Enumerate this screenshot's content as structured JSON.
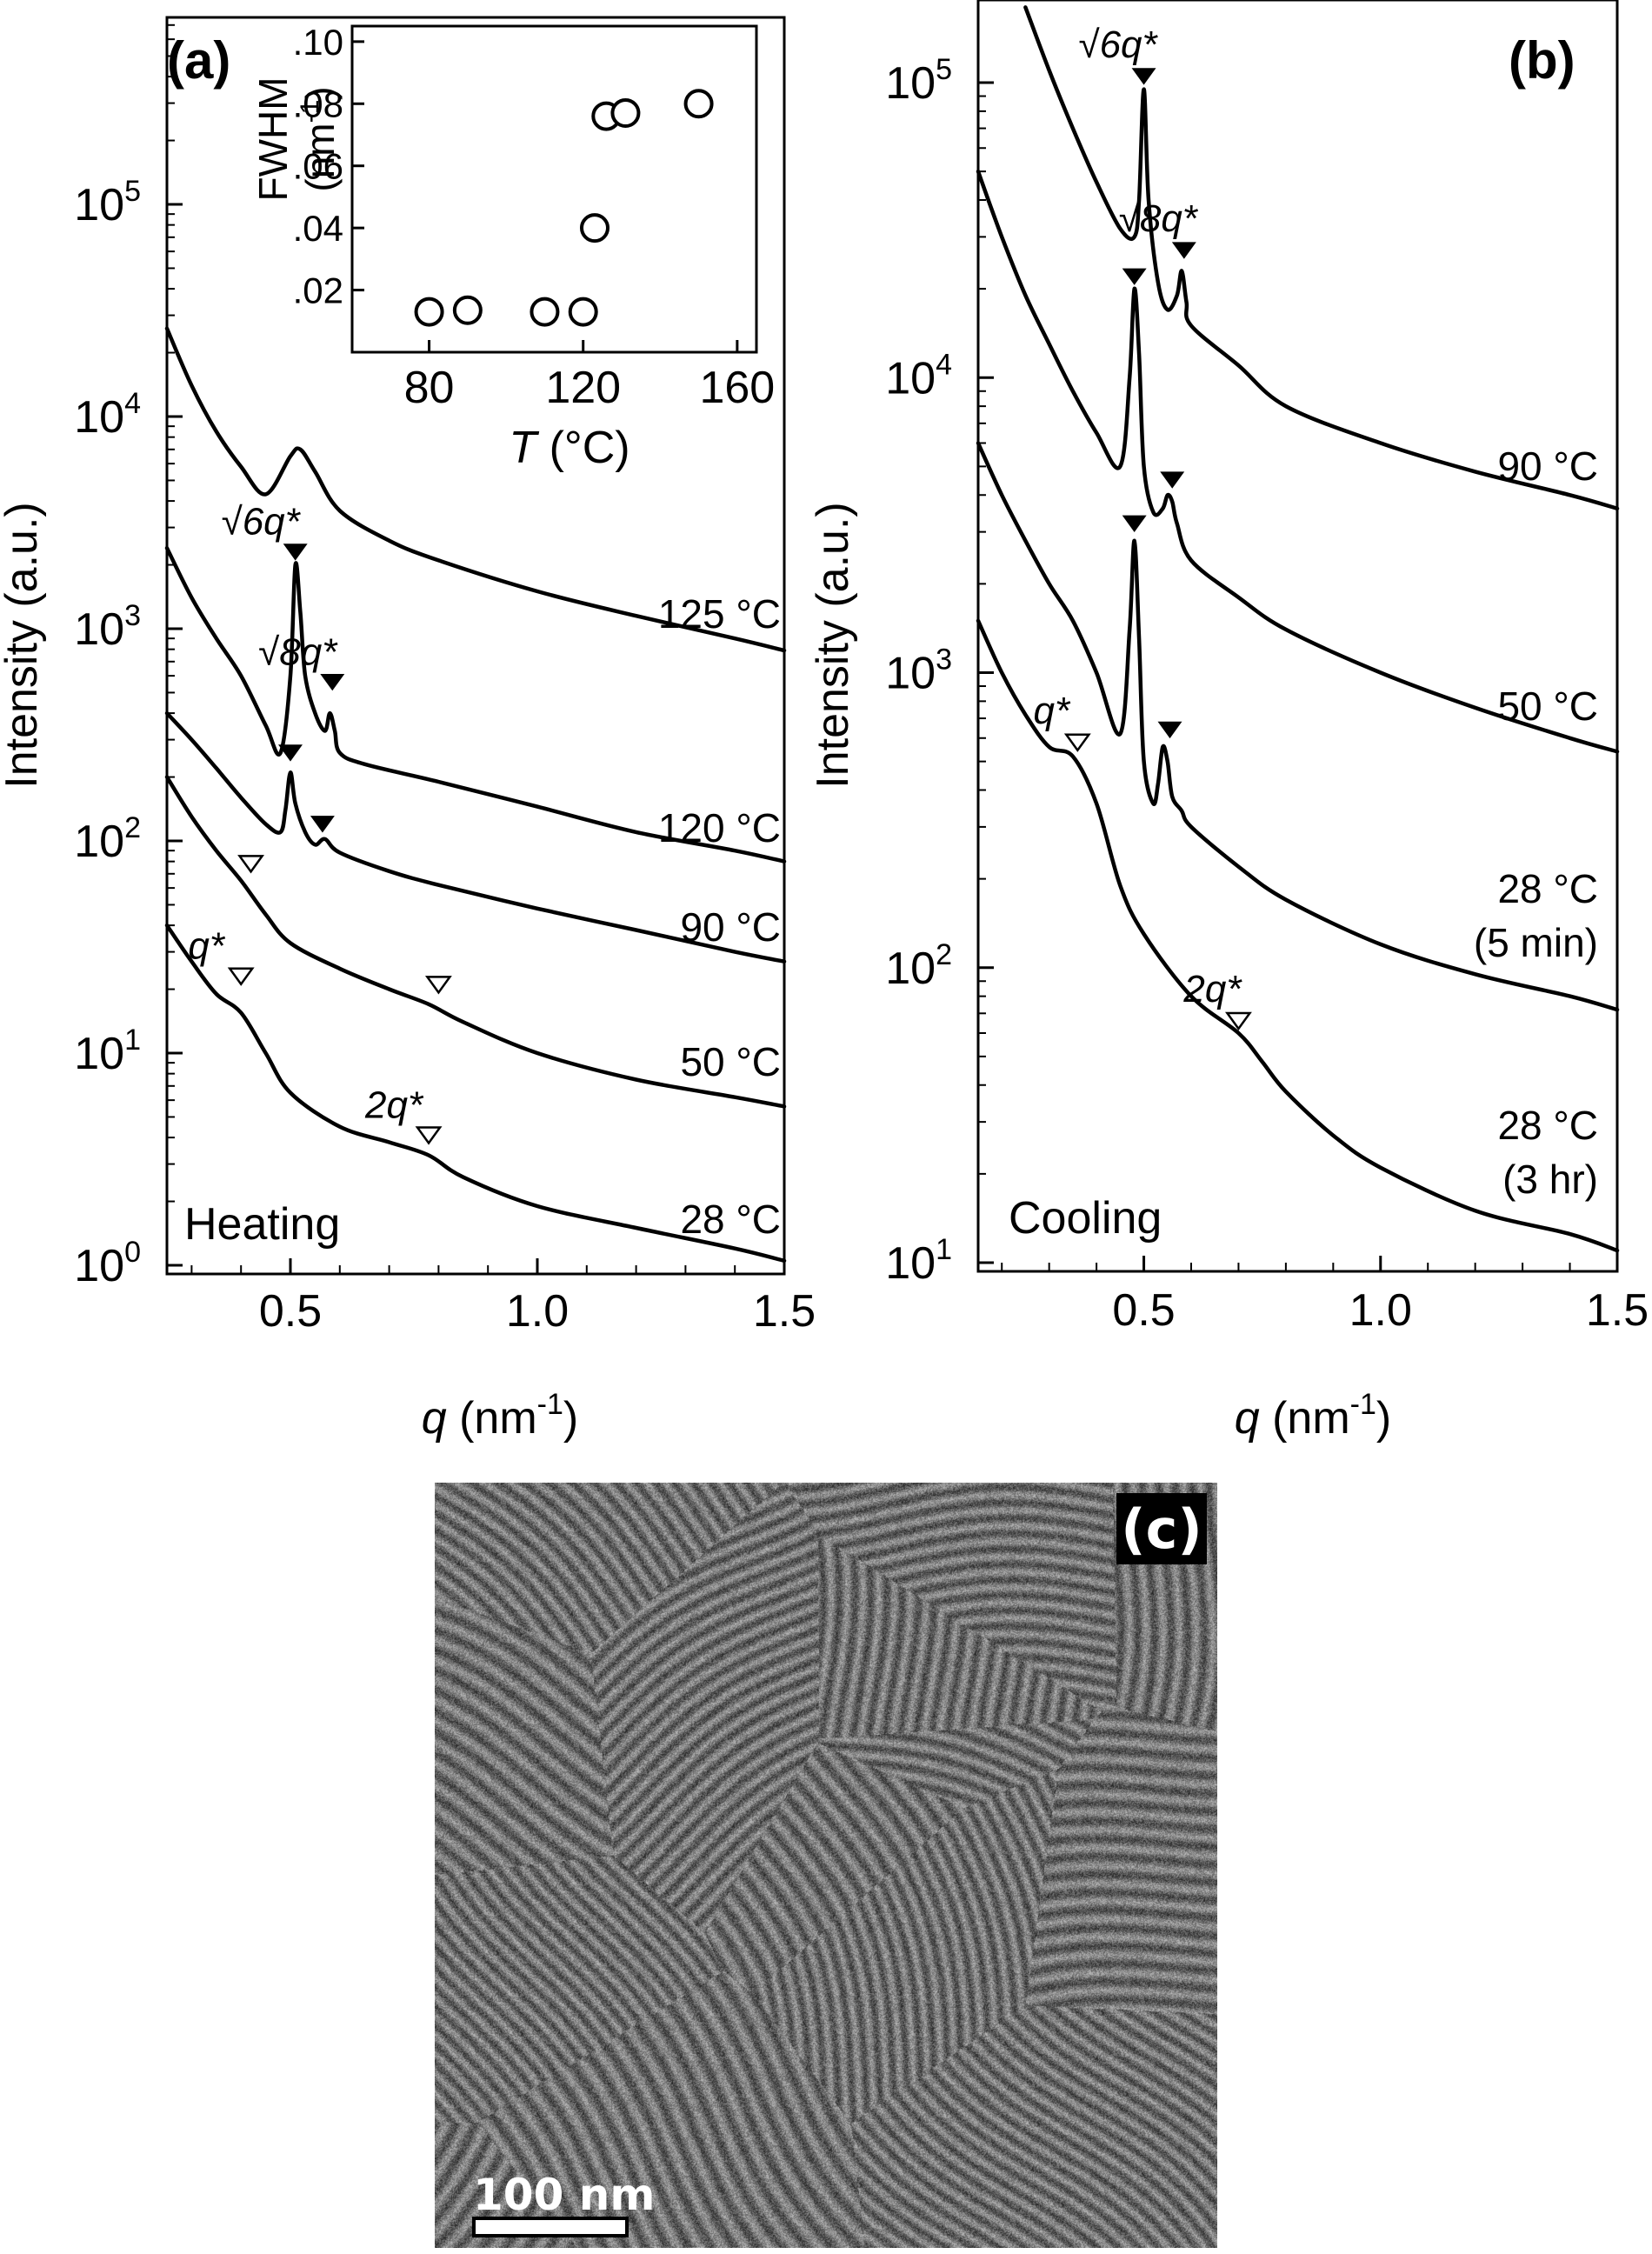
{
  "chart_data": [
    {
      "panel": "(a)",
      "type": "line",
      "mode_label": "Heating",
      "xlabel": "q (nm-1)",
      "ylabel": "Intensity (a.u.)",
      "y_scale": "log",
      "xlim": [
        0.25,
        1.5
      ],
      "ylim": [
        1,
        1000000
      ],
      "x_ticks": [
        0.5,
        1.0,
        1.5
      ],
      "x_tick_labels": [
        "0.5",
        "1.0",
        "1.5"
      ],
      "y_tick_labels": [
        "10^0",
        "10^1",
        "10^2",
        "10^3",
        "10^4",
        "10^5"
      ],
      "series": [
        {
          "name": "125 °C",
          "x": [
            0.25,
            0.3,
            0.35,
            0.4,
            0.45,
            0.5,
            0.52,
            0.55,
            0.6,
            0.7,
            0.8,
            1.0,
            1.2,
            1.4,
            1.5
          ],
          "y": [
            26000,
            14000,
            8500,
            5800,
            4300,
            6500,
            7000,
            5500,
            3600,
            2600,
            2100,
            1500,
            1150,
            900,
            790
          ]
        },
        {
          "name": "120 °C",
          "x": [
            0.25,
            0.3,
            0.35,
            0.4,
            0.45,
            0.48,
            0.5,
            0.51,
            0.52,
            0.53,
            0.55,
            0.57,
            0.58,
            0.59,
            0.6,
            0.65,
            0.8,
            1.0,
            1.2,
            1.4,
            1.5
          ],
          "y": [
            2400,
            1400,
            900,
            600,
            350,
            260,
            600,
            2000,
            1200,
            600,
            400,
            330,
            400,
            330,
            260,
            230,
            190,
            145,
            110,
            90,
            80
          ]
        },
        {
          "name": "90 °C",
          "x": [
            0.25,
            0.3,
            0.35,
            0.4,
            0.45,
            0.48,
            0.49,
            0.5,
            0.51,
            0.53,
            0.55,
            0.57,
            0.6,
            0.7,
            0.8,
            1.0,
            1.2,
            1.4,
            1.5
          ],
          "y": [
            400,
            300,
            220,
            160,
            120,
            110,
            140,
            210,
            150,
            110,
            96,
            102,
            88,
            72,
            62,
            48,
            38,
            30,
            27
          ]
        },
        {
          "name": "50 °C",
          "x": [
            0.25,
            0.3,
            0.35,
            0.4,
            0.45,
            0.5,
            0.6,
            0.7,
            0.78,
            0.85,
            1.0,
            1.2,
            1.4,
            1.5
          ],
          "y": [
            200,
            130,
            90,
            65,
            45,
            33,
            25,
            20,
            17,
            14,
            10,
            7.5,
            6.2,
            5.6
          ]
        },
        {
          "name": "28 °C",
          "x": [
            0.25,
            0.3,
            0.35,
            0.4,
            0.45,
            0.5,
            0.6,
            0.7,
            0.78,
            0.85,
            1.0,
            1.2,
            1.4,
            1.5
          ],
          "y": [
            40,
            27,
            19,
            15.5,
            10,
            6.5,
            4.5,
            3.8,
            3.3,
            2.6,
            1.9,
            1.5,
            1.2,
            1.05
          ]
        }
      ],
      "curve_labels": [
        "125 °C",
        "120 °C",
        "90 °C",
        "50 °C",
        "28 °C"
      ],
      "annotations": [
        {
          "text": "√6q*",
          "x": 0.51,
          "y": 2300,
          "marker": "filled"
        },
        {
          "text": "√8q*",
          "x": 0.585,
          "y": 560,
          "marker": "filled"
        },
        {
          "text": "",
          "x": 0.5,
          "y": 260,
          "marker": "filled"
        },
        {
          "text": "",
          "x": 0.565,
          "y": 120,
          "marker": "filled"
        },
        {
          "text": "",
          "x": 0.42,
          "y": 78,
          "marker": "open"
        },
        {
          "text": "",
          "x": 0.8,
          "y": 21,
          "marker": "open"
        },
        {
          "text": "q*",
          "x": 0.4,
          "y": 23,
          "marker": "open"
        },
        {
          "text": "2q*",
          "x": 0.78,
          "y": 4.1,
          "marker": "open"
        }
      ],
      "inset": {
        "type": "scatter",
        "xlabel": "T (°C)",
        "ylabel": "FWHM (nm-1)",
        "xlim": [
          60,
          165
        ],
        "ylim": [
          0,
          0.105
        ],
        "x_tick_labels": [
          "80",
          "120",
          "160"
        ],
        "y_tick_labels": [
          ".02",
          ".04",
          ".06",
          ".08",
          ".10"
        ],
        "points": [
          {
            "x": 80,
            "y": 0.013
          },
          {
            "x": 90,
            "y": 0.0135
          },
          {
            "x": 110,
            "y": 0.013
          },
          {
            "x": 120,
            "y": 0.013
          },
          {
            "x": 123,
            "y": 0.04
          },
          {
            "x": 126,
            "y": 0.076
          },
          {
            "x": 131,
            "y": 0.077
          },
          {
            "x": 150,
            "y": 0.08
          }
        ]
      }
    },
    {
      "panel": "(b)",
      "type": "line",
      "mode_label": "Cooling",
      "xlabel": "q (nm-1)",
      "ylabel": "Intensity (a.u.)",
      "y_scale": "log",
      "xlim": [
        0.15,
        1.5
      ],
      "ylim": [
        10,
        200000
      ],
      "x_ticks": [
        0.5,
        1.0,
        1.5
      ],
      "x_tick_labels": [
        "0.5",
        "1.0",
        "1.5"
      ],
      "y_tick_labels": [
        "10^1",
        "10^2",
        "10^3",
        "10^4",
        "10^5"
      ],
      "series": [
        {
          "name": "90 °C",
          "x": [
            0.25,
            0.3,
            0.35,
            0.4,
            0.45,
            0.48,
            0.49,
            0.5,
            0.51,
            0.53,
            0.55,
            0.57,
            0.58,
            0.59,
            0.6,
            0.7,
            0.8,
            1.0,
            1.2,
            1.4,
            1.5
          ],
          "y": [
            180000,
            110000,
            70000,
            46000,
            32000,
            30000,
            40000,
            95000,
            40000,
            21000,
            17000,
            19000,
            23000,
            18000,
            15000,
            11000,
            8000,
            6000,
            4800,
            4000,
            3600
          ]
        },
        {
          "name": "50 °C",
          "x": [
            0.15,
            0.2,
            0.25,
            0.3,
            0.35,
            0.4,
            0.45,
            0.47,
            0.48,
            0.49,
            0.5,
            0.52,
            0.54,
            0.55,
            0.56,
            0.57,
            0.6,
            0.7,
            0.8,
            1.0,
            1.2,
            1.4,
            1.5
          ],
          "y": [
            50000,
            30000,
            19000,
            13000,
            9000,
            6500,
            5000,
            10000,
            20000,
            12000,
            5000,
            3500,
            3600,
            4000,
            3800,
            3200,
            2400,
            1800,
            1400,
            1000,
            760,
            600,
            540
          ]
        },
        {
          "name": "28 °C (5 min)",
          "x": [
            0.15,
            0.2,
            0.25,
            0.3,
            0.35,
            0.4,
            0.45,
            0.47,
            0.48,
            0.49,
            0.5,
            0.52,
            0.53,
            0.54,
            0.55,
            0.56,
            0.58,
            0.6,
            0.7,
            0.8,
            1.0,
            1.2,
            1.4,
            1.5
          ],
          "y": [
            6000,
            4000,
            2800,
            2000,
            1500,
            1000,
            620,
            1400,
            2800,
            1300,
            500,
            360,
            420,
            560,
            500,
            380,
            340,
            300,
            220,
            170,
            120,
            95,
            80,
            72
          ]
        },
        {
          "name": "28 °C (3 hr)",
          "x": [
            0.15,
            0.2,
            0.25,
            0.3,
            0.35,
            0.4,
            0.45,
            0.5,
            0.6,
            0.7,
            0.75,
            0.8,
            0.9,
            1.0,
            1.2,
            1.4,
            1.5
          ],
          "y": [
            1500,
            1000,
            720,
            560,
            520,
            360,
            190,
            130,
            80,
            60,
            48,
            38,
            27,
            21,
            15,
            12.5,
            11
          ]
        }
      ],
      "curve_labels": [
        "90 °C",
        "50 °C",
        "28 °C",
        "(5 min)",
        "28 °C",
        "(3 hr)"
      ],
      "annotations": [
        {
          "text": "√6q*",
          "x": 0.5,
          "y": 105000,
          "marker": "filled"
        },
        {
          "text": "√8q*",
          "x": 0.585,
          "y": 27000,
          "marker": "filled"
        },
        {
          "text": "",
          "x": 0.48,
          "y": 22000,
          "marker": "filled"
        },
        {
          "text": "",
          "x": 0.56,
          "y": 4500,
          "marker": "filled"
        },
        {
          "text": "",
          "x": 0.48,
          "y": 3200,
          "marker": "filled"
        },
        {
          "text": "",
          "x": 0.555,
          "y": 640,
          "marker": "filled"
        },
        {
          "text": "q*",
          "x": 0.36,
          "y": 580,
          "marker": "open"
        },
        {
          "text": "2q*",
          "x": 0.7,
          "y": 66,
          "marker": "open"
        }
      ]
    }
  ],
  "tem": {
    "panel_label": "(c)",
    "scale_bar": "100 nm"
  }
}
